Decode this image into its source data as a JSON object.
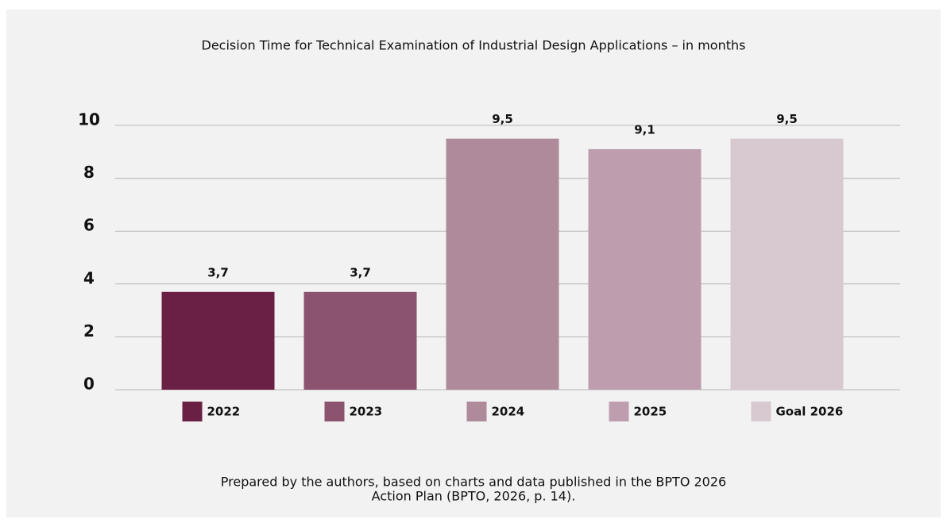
{
  "chart_data": {
    "type": "bar",
    "title": "Decision Time for Technical Examination of Industrial Design Applications – in months",
    "categories": [
      "2022",
      "2023",
      "2024",
      "2025",
      "Goal 2026"
    ],
    "values": [
      3.7,
      3.7,
      9.5,
      9.1,
      9.5
    ],
    "value_labels": [
      "3,7",
      "3,7",
      "9,5",
      "9,1",
      "9,5"
    ],
    "colors": [
      "#6a1f45",
      "#8c536f",
      "#ae8a9b",
      "#be9dae",
      "#d8c8d0"
    ],
    "ylim": [
      0,
      10
    ],
    "yticks": [
      0,
      2,
      4,
      6,
      8,
      10
    ],
    "grid": true,
    "footer": [
      "Prepared by the authors, based on charts and data published in the BPTO 2026",
      "Action Plan (BPTO, 2026, p. 14)."
    ]
  }
}
